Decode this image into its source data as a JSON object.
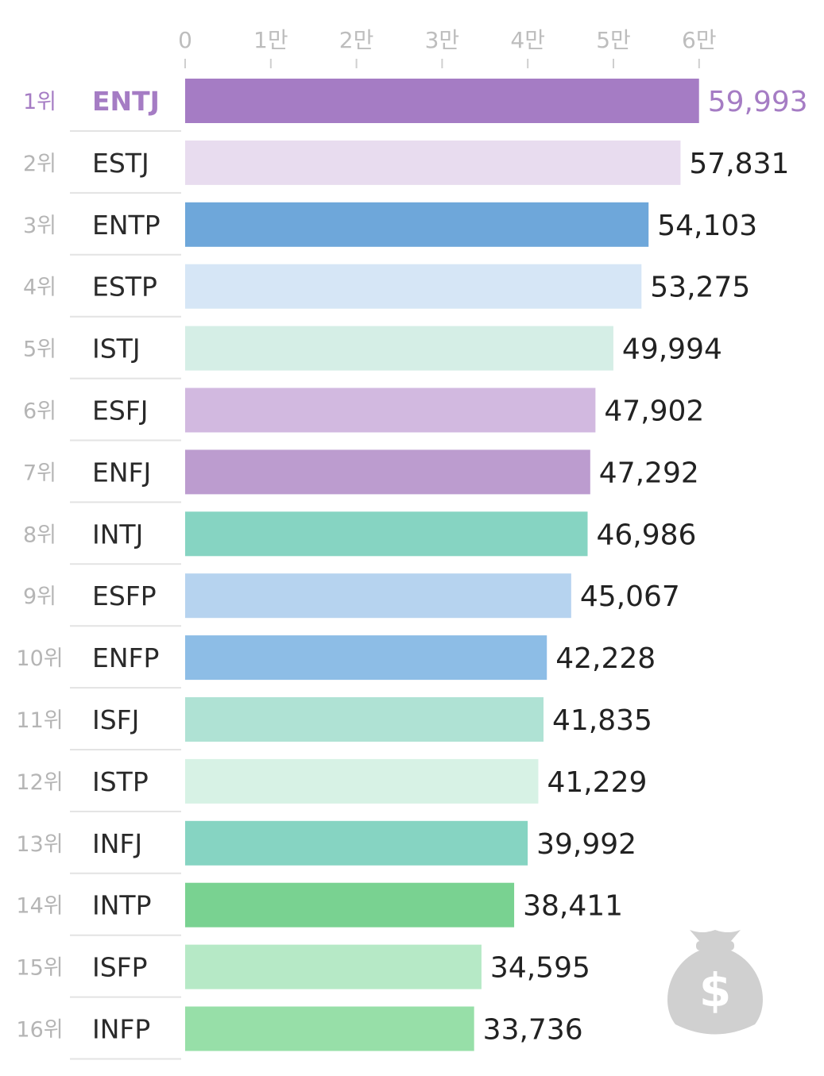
{
  "chart_data": {
    "type": "bar",
    "orientation": "horizontal",
    "title": "",
    "xlabel": "",
    "ylabel": "",
    "xlim": [
      0,
      60000
    ],
    "grid": false,
    "legend": "none",
    "axis_ticks": [
      {
        "value": 0,
        "label": "0"
      },
      {
        "value": 10000,
        "label": "1만"
      },
      {
        "value": 20000,
        "label": "2만"
      },
      {
        "value": 30000,
        "label": "3만"
      },
      {
        "value": 40000,
        "label": "4만"
      },
      {
        "value": 50000,
        "label": "5만"
      },
      {
        "value": 60000,
        "label": "6만"
      }
    ],
    "ranks": [
      "1위",
      "2위",
      "3위",
      "4위",
      "5위",
      "6위",
      "7위",
      "8위",
      "9위",
      "10위",
      "11위",
      "12위",
      "13위",
      "14위",
      "15위",
      "16위"
    ],
    "categories": [
      "ENTJ",
      "ESTJ",
      "ENTP",
      "ESTP",
      "ISTJ",
      "ESFJ",
      "ENFJ",
      "INTJ",
      "ESFP",
      "ENFP",
      "ISFJ",
      "ISTP",
      "INFJ",
      "INTP",
      "ISFP",
      "INFP"
    ],
    "values": [
      59993,
      57831,
      54103,
      53275,
      49994,
      47902,
      47292,
      46986,
      45067,
      42228,
      41835,
      41229,
      39992,
      38411,
      34595,
      33736
    ],
    "value_labels": [
      "59,993",
      "57,831",
      "54,103",
      "53,275",
      "49,994",
      "47,902",
      "47,292",
      "46,986",
      "45,067",
      "42,228",
      "41,835",
      "41,229",
      "39,992",
      "38,411",
      "34,595",
      "33,736"
    ],
    "bar_colors": [
      "#a57cc4",
      "#e8dcef",
      "#6ea7da",
      "#d6e6f6",
      "#d5eee6",
      "#d2b9e0",
      "#bc9ccf",
      "#86d4c2",
      "#b6d3ef",
      "#8dbde6",
      "#afe2d4",
      "#d7f2e5",
      "#86d4c2",
      "#79d291",
      "#b6e9c6",
      "#97dfa8"
    ],
    "highlight_color": "#a57cc4",
    "highlight_index": 0,
    "decoration": "money-bag-icon"
  }
}
